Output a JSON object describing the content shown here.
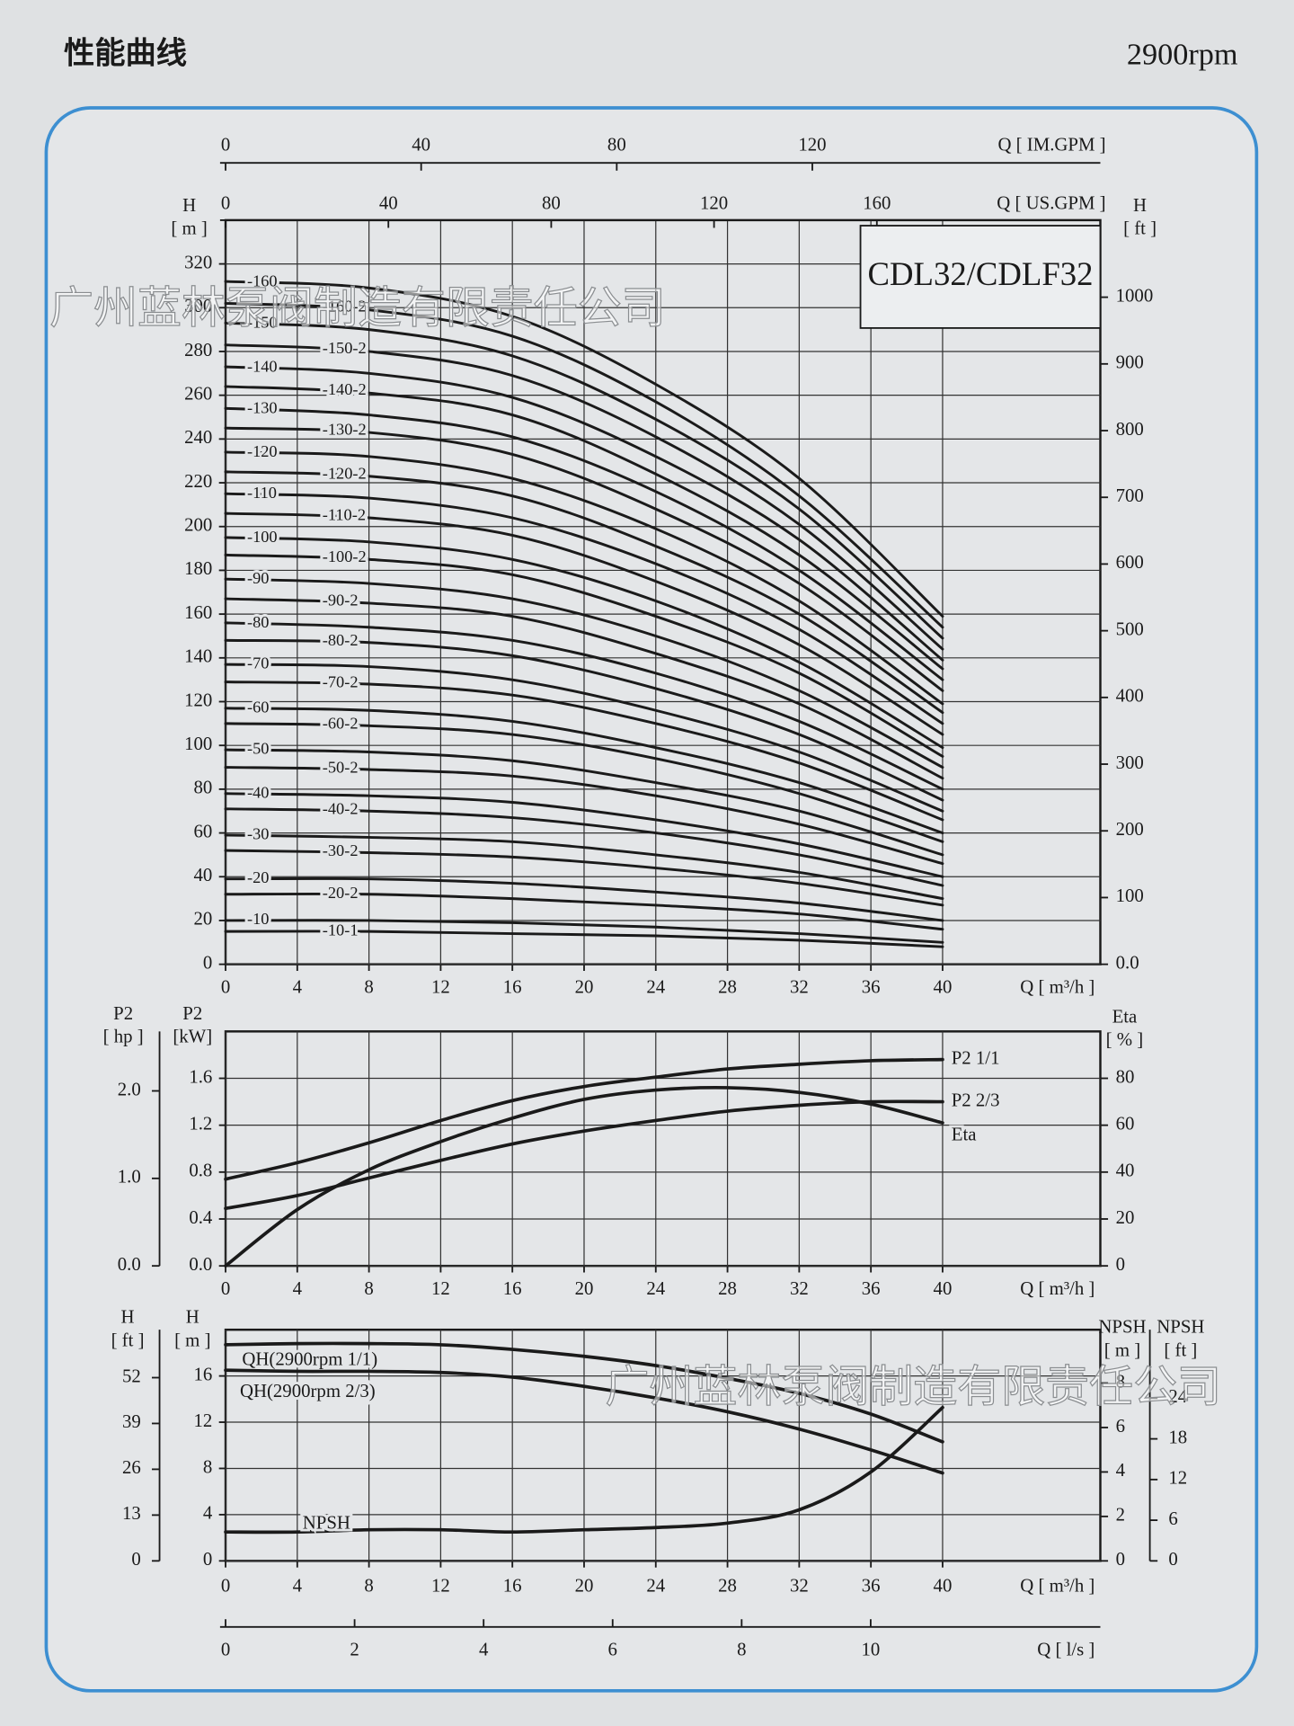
{
  "header": {
    "title": "性能曲线",
    "speed": "2900rpm"
  },
  "watermarks": [
    "广州蓝林泵阀制造有限责任公司",
    "广州蓝林泵阀制造有限责任公司"
  ],
  "chart_data": [
    {
      "type": "line",
      "title": "CDL32/CDLF32",
      "color": "#1a1a1a",
      "grid": true,
      "x": [
        0,
        8,
        16,
        24,
        32,
        40
      ],
      "xlim": [
        0,
        48.8
      ],
      "xticks": [
        0,
        4,
        8,
        12,
        16,
        20,
        24,
        28,
        32,
        36,
        40
      ],
      "xlabel": "Q [ m³/h ]",
      "ylabel": [
        "H",
        "[ m ]"
      ],
      "ylim": [
        0,
        340
      ],
      "yticks": [
        0,
        20,
        40,
        60,
        80,
        100,
        120,
        140,
        160,
        180,
        200,
        220,
        240,
        260,
        280,
        300,
        320
      ],
      "y2label": [
        "H",
        "[ ft ]"
      ],
      "y2lim": [
        0,
        1115.5
      ],
      "y2ticks": [
        {
          "value": 0,
          "label": "0.0"
        },
        100,
        200,
        300,
        400,
        500,
        600,
        700,
        800,
        900,
        1000
      ],
      "extra_axes": [
        {
          "side": "top",
          "label": "Q [ IM.GPM ]",
          "lim": [
            0,
            178.9
          ],
          "ticks": [
            0,
            40,
            80,
            120
          ]
        },
        {
          "side": "top",
          "label": "Q [ US.GPM ]",
          "lim": [
            0,
            214.9
          ],
          "ticks": [
            0,
            40,
            80,
            120,
            160
          ]
        }
      ],
      "series": [
        {
          "name": "-160",
          "values": [
            312,
            309,
            296,
            265,
            222,
            159
          ]
        },
        {
          "name": "-160-2",
          "values": [
            302,
            299,
            287,
            257,
            214,
            154
          ]
        },
        {
          "name": "-150",
          "values": [
            293,
            290,
            278,
            249,
            208,
            149
          ]
        },
        {
          "name": "-150-2",
          "values": [
            283,
            280,
            269,
            241,
            201,
            144
          ]
        },
        {
          "name": "-140",
          "values": [
            273,
            270,
            259,
            232,
            194,
            139
          ]
        },
        {
          "name": "-140-2",
          "values": [
            264,
            261,
            251,
            224,
            187,
            135
          ]
        },
        {
          "name": "-130",
          "values": [
            254,
            251,
            241,
            216,
            180,
            130
          ]
        },
        {
          "name": "-130-2",
          "values": [
            245,
            243,
            233,
            208,
            174,
            125
          ]
        },
        {
          "name": "-120",
          "values": [
            234,
            232,
            222,
            199,
            166,
            119
          ]
        },
        {
          "name": "-120-2",
          "values": [
            225,
            223,
            214,
            191,
            160,
            115
          ]
        },
        {
          "name": "-110",
          "values": [
            215,
            213,
            204,
            183,
            153,
            110
          ]
        },
        {
          "name": "-110-2",
          "values": [
            206,
            204,
            196,
            175,
            146,
            105
          ]
        },
        {
          "name": "-100",
          "values": [
            195,
            193,
            185,
            166,
            138,
            99
          ]
        },
        {
          "name": "-100-2",
          "values": [
            187,
            185,
            178,
            159,
            133,
            95
          ]
        },
        {
          "name": "-90",
          "values": [
            176,
            174,
            167,
            150,
            125,
            90
          ]
        },
        {
          "name": "-90-2",
          "values": [
            167,
            165,
            159,
            142,
            119,
            85
          ]
        },
        {
          "name": "-80",
          "values": [
            156,
            154,
            148,
            133,
            111,
            80
          ]
        },
        {
          "name": "-80-2",
          "values": [
            148,
            147,
            141,
            126,
            105,
            75
          ]
        },
        {
          "name": "-70",
          "values": [
            137,
            136,
            130,
            116,
            97,
            70
          ]
        },
        {
          "name": "-70-2",
          "values": [
            129,
            128,
            123,
            110,
            92,
            66
          ]
        },
        {
          "name": "-60",
          "values": [
            117,
            116,
            111,
            99,
            83,
            60
          ]
        },
        {
          "name": "-60-2",
          "values": [
            110,
            109,
            105,
            94,
            78,
            56
          ]
        },
        {
          "name": "-50",
          "values": [
            98,
            97,
            93,
            83,
            70,
            50
          ]
        },
        {
          "name": "-50-2",
          "values": [
            90,
            89,
            86,
            77,
            64,
            46
          ]
        },
        {
          "name": "-40",
          "values": [
            78,
            77,
            74,
            66,
            55,
            40
          ]
        },
        {
          "name": "-40-2",
          "values": [
            71,
            70,
            67,
            60,
            50,
            36
          ]
        },
        {
          "name": "-30",
          "values": [
            59,
            58,
            56,
            50,
            42,
            30
          ]
        },
        {
          "name": "-30-2",
          "values": [
            52,
            51,
            49,
            44,
            37,
            27
          ]
        },
        {
          "name": "-20",
          "values": [
            39,
            39,
            37,
            33,
            28,
            20
          ]
        },
        {
          "name": "-20-2",
          "values": [
            32,
            32,
            30,
            27,
            23,
            16
          ]
        },
        {
          "name": "-10",
          "values": [
            20,
            20,
            19,
            17,
            14,
            10
          ]
        },
        {
          "name": "-10-1",
          "values": [
            15,
            15,
            14,
            13,
            11,
            8
          ]
        }
      ]
    },
    {
      "type": "line",
      "color": "#1a1a1a",
      "grid": true,
      "x": [
        0,
        4,
        8,
        12,
        16,
        20,
        24,
        28,
        32,
        36,
        40
      ],
      "xlim": [
        0,
        48.8
      ],
      "xticks": [
        0,
        4,
        8,
        12,
        16,
        20,
        24,
        28,
        32,
        36,
        40
      ],
      "xlabel": "Q [ m³/h ]",
      "ylabel": [
        "P2",
        "[kW]"
      ],
      "ylim": [
        0,
        2.0
      ],
      "yticks": [
        {
          "value": 0,
          "label": "0.0"
        },
        0.4,
        0.8,
        1.2,
        1.6
      ],
      "y2label": [
        "Eta",
        "[ % ]"
      ],
      "y2lim": [
        0,
        100
      ],
      "y2ticks": [
        0,
        20,
        40,
        60,
        80
      ],
      "extra_axes": [
        {
          "side": "left",
          "label": [
            "P2",
            "[ hp ]"
          ],
          "lim": [
            0,
            2.68
          ],
          "ticks": [
            {
              "value": 0,
              "label": "0.0"
            },
            {
              "value": 1,
              "label": "1.0"
            },
            {
              "value": 2,
              "label": "2.0"
            }
          ]
        }
      ],
      "series": [
        {
          "name": "P2  1/1",
          "values": [
            0.74,
            0.88,
            1.05,
            1.24,
            1.41,
            1.53,
            1.61,
            1.68,
            1.72,
            1.75,
            1.76
          ]
        },
        {
          "name": "P2  2/3",
          "values": [
            0.49,
            0.6,
            0.75,
            0.9,
            1.04,
            1.15,
            1.24,
            1.32,
            1.37,
            1.4,
            1.4
          ]
        },
        {
          "name": "Eta",
          "axis": "y2",
          "values": [
            0,
            24,
            41,
            53,
            63,
            71,
            75,
            76,
            74,
            69,
            61
          ]
        }
      ]
    },
    {
      "type": "line",
      "color": "#1a1a1a",
      "grid": true,
      "x": [
        0,
        4,
        8,
        12,
        16,
        20,
        24,
        28,
        32,
        36,
        40
      ],
      "xlim": [
        0,
        48.8
      ],
      "xticks": [
        0,
        4,
        8,
        12,
        16,
        20,
        24,
        28,
        32,
        36,
        40
      ],
      "xlabel": "Q [ m³/h ]",
      "ylabel": [
        "H",
        "[ m ]"
      ],
      "ylim": [
        0,
        20
      ],
      "yticks": [
        0,
        4,
        8,
        12,
        16
      ],
      "y2label": [
        "NPSH",
        "[ m ]"
      ],
      "y2lim": [
        0,
        10.4
      ],
      "y2ticks": [
        0,
        2,
        4,
        6,
        8
      ],
      "extra_axes": [
        {
          "side": "left",
          "label": [
            "H",
            "[ ft ]"
          ],
          "lim": [
            0,
            65.6
          ],
          "ticks": [
            0,
            13,
            26,
            39,
            52
          ]
        },
        {
          "side": "right",
          "label": [
            "NPSH",
            "[ ft ]"
          ],
          "lim": [
            0,
            34.1
          ],
          "ticks": [
            0,
            6,
            12,
            18,
            24
          ]
        },
        {
          "side": "bottom",
          "label": "Q [ l/s ]",
          "lim": [
            0,
            13.56
          ],
          "ticks": [
            0,
            2,
            4,
            6,
            8,
            10
          ]
        }
      ],
      "series": [
        {
          "name": "QH(2900rpm 1/1)",
          "values": [
            18.7,
            18.8,
            18.8,
            18.7,
            18.3,
            17.7,
            16.9,
            15.8,
            14.5,
            12.7,
            10.3
          ]
        },
        {
          "name": "QH(2900rpm 2/3)",
          "values": [
            16.5,
            16.4,
            16.4,
            16.3,
            15.9,
            15.1,
            14.1,
            12.9,
            11.4,
            9.6,
            7.6
          ]
        },
        {
          "name": "NPSH",
          "axis": "y2",
          "values": [
            1.3,
            1.3,
            1.4,
            1.4,
            1.3,
            1.4,
            1.5,
            1.7,
            2.3,
            4.0,
            6.9
          ]
        }
      ]
    }
  ]
}
